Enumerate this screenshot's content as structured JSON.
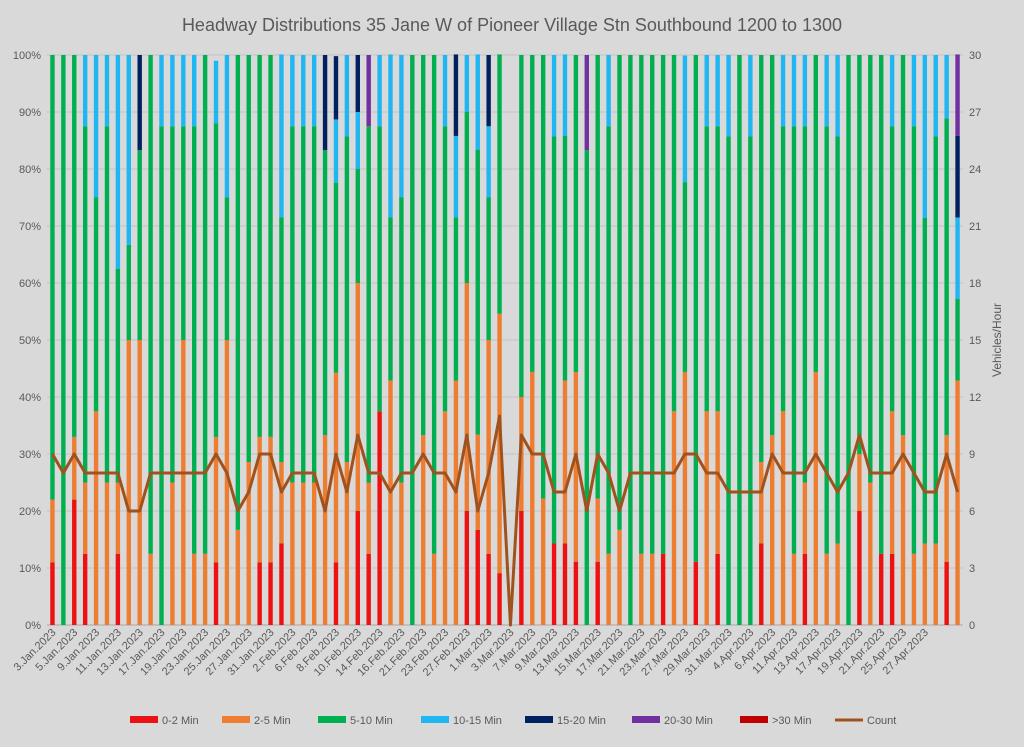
{
  "chart_data": {
    "type": "bar",
    "stacked": true,
    "title": "Headway Distributions 35 Jane  W of Pioneer Village Stn Southbound 1200 to 1300",
    "ylabel_right": "Vehicles/Hour",
    "ylim": [
      0,
      100
    ],
    "y2lim": [
      0,
      30
    ],
    "y_ticks": [
      "0%",
      "10%",
      "20%",
      "30%",
      "40%",
      "50%",
      "60%",
      "70%",
      "80%",
      "90%",
      "100%"
    ],
    "y2_ticks": [
      "0",
      "3",
      "6",
      "9",
      "12",
      "15",
      "18",
      "21",
      "24",
      "27",
      "30"
    ],
    "grid": true,
    "legend_position": "bottom",
    "x_tick_labels": [
      "3.Jan.2023",
      "5.Jan.2023",
      "9.Jan.2023",
      "11.Jan.2023",
      "13.Jan.2023",
      "17.Jan.2023",
      "19.Jan.2023",
      "23.Jan.2023",
      "25.Jan.2023",
      "27.Jan.2023",
      "31.Jan.2023",
      "2.Feb.2023",
      "6.Feb.2023",
      "8.Feb.2023",
      "10.Feb.2023",
      "14.Feb.2023",
      "16.Feb.2023",
      "21.Feb.2023",
      "23.Feb.2023",
      "27.Feb.2023",
      "1.Mar.2023",
      "3.Mar.2023",
      "7.Mar.2023",
      "9.Mar.2023",
      "13.Mar.2023",
      "15.Mar.2023",
      "17.Mar.2023",
      "21.Mar.2023",
      "23.Mar.2023",
      "27.Mar.2023",
      "29.Mar.2023",
      "31.Mar.2023",
      "4.Apr.2023",
      "6.Apr.2023",
      "11.Apr.2023",
      "13.Apr.2023",
      "17.Apr.2023",
      "19.Apr.2023",
      "21.Apr.2023",
      "25.Apr.2023",
      "27.Apr.2023"
    ],
    "series_styles": [
      {
        "name": "0-2 Min",
        "color": "#ee1111"
      },
      {
        "name": "2-5 Min",
        "color": "#ed7d31"
      },
      {
        "name": "5-10 Min",
        "color": "#00b050"
      },
      {
        "name": "10-15 Min",
        "color": "#1fb6f2"
      },
      {
        "name": "15-20 Min",
        "color": "#002060"
      },
      {
        "name": "20-30 Min",
        "color": "#7030a0"
      },
      {
        "name": ">30 Min",
        "color": "#c00000"
      }
    ],
    "count_series": {
      "name": "Count",
      "color": "#a0521e"
    },
    "bars": [
      [
        11,
        11,
        78,
        0,
        0,
        0,
        0,
        9
      ],
      [
        0,
        0,
        100,
        0,
        0,
        0,
        0,
        8
      ],
      [
        22,
        11,
        67,
        0,
        0,
        0,
        0,
        9
      ],
      [
        12.5,
        12.5,
        62.5,
        12.5,
        0,
        0,
        0,
        8
      ],
      [
        0,
        37.5,
        37.5,
        25,
        0,
        0,
        0,
        8
      ],
      [
        0,
        25,
        62.5,
        12.5,
        0,
        0,
        0,
        8
      ],
      [
        12.5,
        12.5,
        37.5,
        37.5,
        0,
        0,
        0,
        8
      ],
      [
        0,
        50,
        16.7,
        33.3,
        0,
        0,
        0,
        6
      ],
      [
        0,
        50,
        33.3,
        0,
        16.7,
        0,
        0,
        6
      ],
      [
        0,
        12.5,
        87.5,
        0,
        0,
        0,
        0,
        8
      ],
      [
        0,
        0,
        87.5,
        12.5,
        0,
        0,
        0,
        8
      ],
      [
        0,
        25,
        62.5,
        12.5,
        0,
        0,
        0,
        8
      ],
      [
        0,
        50,
        37.5,
        12.5,
        0,
        0,
        0,
        8
      ],
      [
        0,
        12.5,
        75,
        12.5,
        0,
        0,
        0,
        8
      ],
      [
        0,
        12.5,
        87.5,
        0,
        0,
        0,
        0,
        8
      ],
      [
        11,
        22,
        55,
        11,
        0,
        0,
        0,
        9
      ],
      [
        0,
        50,
        25,
        25,
        0,
        0,
        0,
        8
      ],
      [
        0,
        16.7,
        83.3,
        0,
        0,
        0,
        0,
        6
      ],
      [
        0,
        28.6,
        71.4,
        0,
        0,
        0,
        0,
        7
      ],
      [
        11,
        22,
        67,
        0,
        0,
        0,
        0,
        9
      ],
      [
        11,
        22,
        67,
        0,
        0,
        0,
        0,
        9
      ],
      [
        14.3,
        14.3,
        42.9,
        28.6,
        0,
        0,
        0,
        7
      ],
      [
        0,
        25,
        62.5,
        12.5,
        0,
        0,
        0,
        8
      ],
      [
        0,
        25,
        62.5,
        12.5,
        0,
        0,
        0,
        8
      ],
      [
        0,
        25,
        62.5,
        12.5,
        0,
        0,
        0,
        8
      ],
      [
        0,
        33.3,
        50,
        0,
        16.7,
        0,
        0,
        6
      ],
      [
        11,
        33.3,
        33.3,
        11.1,
        11.1,
        0,
        0,
        9
      ],
      [
        0,
        28.6,
        57.1,
        14.3,
        0,
        0,
        0,
        7
      ],
      [
        20,
        40,
        20,
        10,
        10,
        0,
        0,
        10
      ],
      [
        12.5,
        12.5,
        62.5,
        0,
        0,
        12.5,
        0,
        8
      ],
      [
        37.5,
        0,
        50,
        12.5,
        0,
        0,
        0,
        8
      ],
      [
        0,
        42.9,
        28.6,
        28.6,
        0,
        0,
        0,
        7
      ],
      [
        0,
        25,
        50,
        25,
        0,
        0,
        0,
        8
      ],
      [
        0,
        0,
        100,
        0,
        0,
        0,
        0,
        8
      ],
      [
        0,
        33.3,
        66.7,
        0,
        0,
        0,
        0,
        9
      ],
      [
        0,
        12.5,
        87.5,
        0,
        0,
        0,
        0,
        8
      ],
      [
        0,
        37.5,
        50,
        12.5,
        0,
        0,
        0,
        8
      ],
      [
        0,
        42.9,
        28.6,
        14.3,
        14.3,
        0,
        0,
        7
      ],
      [
        20,
        40,
        30,
        10,
        0,
        0,
        0,
        10
      ],
      [
        16.7,
        16.7,
        50,
        16.7,
        0,
        0,
        0,
        6
      ],
      [
        12.5,
        37.5,
        25,
        12.5,
        12.5,
        0,
        0,
        8
      ],
      [
        9.1,
        45.5,
        45.5,
        0,
        0,
        0,
        0,
        11
      ],
      [
        0,
        0,
        0,
        0,
        0,
        0,
        0,
        0
      ],
      [
        20,
        20,
        60,
        0,
        0,
        0,
        0,
        10
      ],
      [
        0,
        44.4,
        55.6,
        0,
        0,
        0,
        0,
        9
      ],
      [
        0,
        22.2,
        77.8,
        0,
        0,
        0,
        0,
        9
      ],
      [
        14.3,
        0,
        71.4,
        14.3,
        0,
        0,
        0,
        7
      ],
      [
        14.3,
        28.6,
        42.9,
        14.3,
        0,
        0,
        0,
        7
      ],
      [
        11.1,
        33.3,
        55.6,
        0,
        0,
        0,
        0,
        9
      ],
      [
        0,
        0,
        83.3,
        0,
        0,
        16.7,
        0,
        6
      ],
      [
        11.1,
        11.1,
        77.8,
        0,
        0,
        0,
        0,
        9
      ],
      [
        0,
        12.5,
        75,
        12.5,
        0,
        0,
        0,
        8
      ],
      [
        0,
        16.7,
        83.3,
        0,
        0,
        0,
        0,
        6
      ],
      [
        0,
        0,
        100,
        0,
        0,
        0,
        0,
        8
      ],
      [
        0,
        12.5,
        87.5,
        0,
        0,
        0,
        0,
        8
      ],
      [
        0,
        12.5,
        87.5,
        0,
        0,
        0,
        0,
        8
      ],
      [
        12.5,
        0,
        87.5,
        0,
        0,
        0,
        0,
        8
      ],
      [
        0,
        37.5,
        62.5,
        0,
        0,
        0,
        0,
        8
      ],
      [
        0,
        44.4,
        33.3,
        22.2,
        0,
        0,
        0,
        9
      ],
      [
        11.1,
        0,
        88.9,
        0,
        0,
        0,
        0,
        9
      ],
      [
        0,
        37.5,
        50,
        12.5,
        0,
        0,
        0,
        8
      ],
      [
        12.5,
        25,
        50,
        12.5,
        0,
        0,
        0,
        8
      ],
      [
        0,
        0,
        85.7,
        14.3,
        0,
        0,
        0,
        7
      ],
      [
        0,
        0,
        100,
        0,
        0,
        0,
        0,
        7
      ],
      [
        0,
        0,
        85.7,
        14.3,
        0,
        0,
        0,
        7
      ],
      [
        14.3,
        14.3,
        71.4,
        0,
        0,
        0,
        0,
        7
      ],
      [
        0,
        33.3,
        66.7,
        0,
        0,
        0,
        0,
        9
      ],
      [
        0,
        37.5,
        50,
        12.5,
        0,
        0,
        0,
        8
      ],
      [
        0,
        12.5,
        75,
        12.5,
        0,
        0,
        0,
        8
      ],
      [
        12.5,
        12.5,
        62.5,
        12.5,
        0,
        0,
        0,
        8
      ],
      [
        0,
        44.4,
        55.6,
        0,
        0,
        0,
        0,
        9
      ],
      [
        0,
        12.5,
        75,
        12.5,
        0,
        0,
        0,
        8
      ],
      [
        0,
        14.3,
        71.4,
        14.3,
        0,
        0,
        0,
        7
      ],
      [
        0,
        0,
        100,
        0,
        0,
        0,
        0,
        8
      ],
      [
        20,
        10,
        70,
        0,
        0,
        0,
        0,
        10
      ],
      [
        0,
        25,
        75,
        0,
        0,
        0,
        0,
        8
      ],
      [
        12.5,
        0,
        87.5,
        0,
        0,
        0,
        0,
        8
      ],
      [
        12.5,
        25,
        50,
        12.5,
        0,
        0,
        0,
        8
      ],
      [
        0,
        33.3,
        66.7,
        0,
        0,
        0,
        0,
        9
      ],
      [
        0,
        12.5,
        75,
        12.5,
        0,
        0,
        0,
        8
      ],
      [
        0,
        14.3,
        57.1,
        28.6,
        0,
        0,
        0,
        7
      ],
      [
        0,
        14.3,
        71.4,
        14.3,
        0,
        0,
        0,
        7
      ],
      [
        11.1,
        22.2,
        55.6,
        11.1,
        0,
        0,
        0,
        9
      ],
      [
        0,
        42.9,
        14.3,
        14.3,
        14.3,
        14.3,
        0,
        7
      ]
    ]
  }
}
